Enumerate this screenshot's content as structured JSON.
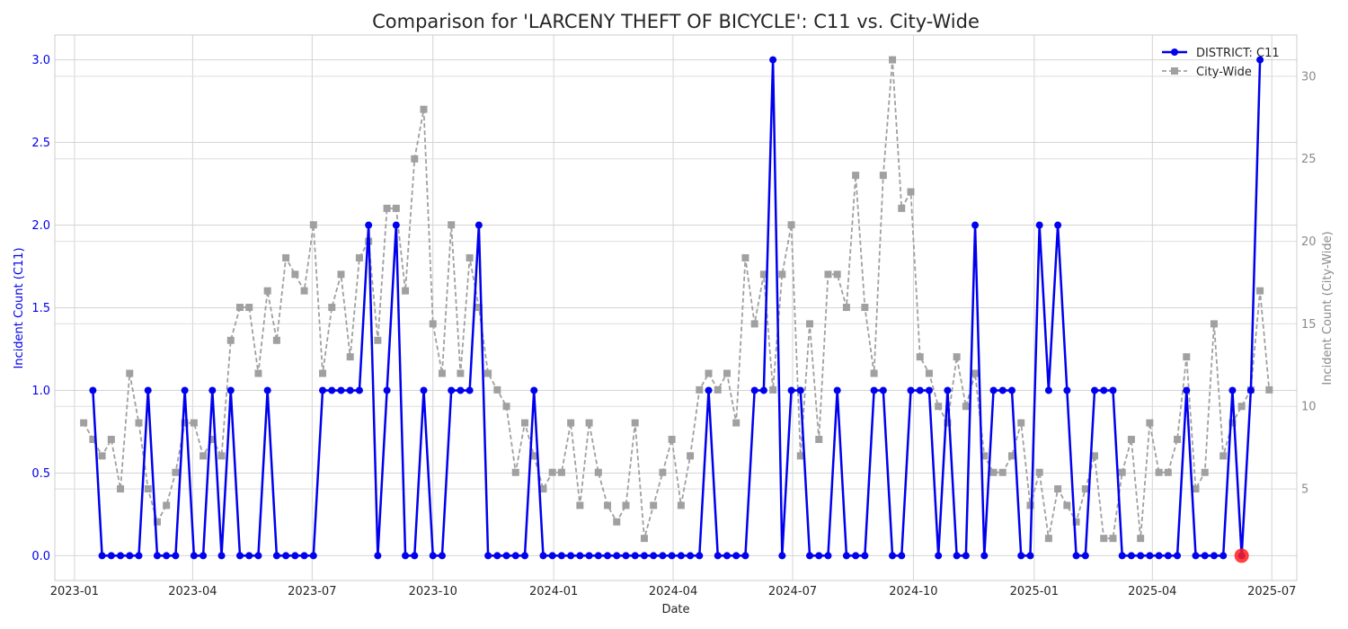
{
  "chart_data": {
    "type": "line",
    "title": "Comparison for 'LARCENY THEFT OF BICYCLE': C11 vs. City-Wide",
    "xlabel": "Date",
    "ylabel_left": "Incident Count (C11)",
    "ylabel_right": "Incident Count (City-Wide)",
    "x_start": "2023-01-08",
    "x_interval_days": 7,
    "x_ticks": [
      {
        "date": "2023-01-01",
        "label": "2023-01"
      },
      {
        "date": "2023-04-01",
        "label": "2023-04"
      },
      {
        "date": "2023-07-01",
        "label": "2023-07"
      },
      {
        "date": "2023-10-01",
        "label": "2023-10"
      },
      {
        "date": "2024-01-01",
        "label": "2024-01"
      },
      {
        "date": "2024-04-01",
        "label": "2024-04"
      },
      {
        "date": "2024-07-01",
        "label": "2024-07"
      },
      {
        "date": "2024-10-01",
        "label": "2024-10"
      },
      {
        "date": "2025-01-01",
        "label": "2025-01"
      },
      {
        "date": "2025-04-01",
        "label": "2025-04"
      },
      {
        "date": "2025-07-01",
        "label": "2025-07"
      }
    ],
    "xlim": [
      "2022-12-17",
      "2025-07-20"
    ],
    "ylim_left": [
      -0.15,
      3.15
    ],
    "ylim_right": [
      -0.55,
      32.5
    ],
    "y_ticks_left": [
      "0.0",
      "0.5",
      "1.0",
      "1.5",
      "2.0",
      "2.5",
      "3.0"
    ],
    "y_ticks_right": [
      "5",
      "10",
      "15",
      "20",
      "25",
      "30"
    ],
    "grid": true,
    "legend_position": "top-right",
    "series": [
      {
        "name": "DISTRICT: C11",
        "axis": "left",
        "color": "#0000ee",
        "style": "solid",
        "marker": "circle",
        "start_index": 1,
        "values": [
          1,
          0,
          0,
          0,
          0,
          0,
          1,
          0,
          0,
          0,
          1,
          0,
          0,
          1,
          0,
          1,
          0,
          0,
          0,
          1,
          0,
          0,
          0,
          0,
          0,
          1,
          1,
          1,
          1,
          1,
          2,
          0,
          1,
          2,
          0,
          0,
          1,
          0,
          0,
          1,
          1,
          1,
          2,
          0,
          0,
          0,
          0,
          0,
          1,
          0,
          0,
          0,
          0,
          0,
          0,
          0,
          0,
          0,
          0,
          0,
          0,
          0,
          0,
          0,
          0,
          0,
          0,
          1,
          0,
          0,
          0,
          0,
          1,
          1,
          3,
          0,
          1,
          1,
          0,
          0,
          0,
          1,
          0,
          0,
          0,
          1,
          1,
          0,
          0,
          1,
          1,
          1,
          0,
          1,
          0,
          0,
          2,
          0,
          1,
          1,
          1,
          0,
          0,
          2,
          1,
          2,
          1,
          0,
          0,
          1,
          1,
          1,
          0,
          0,
          0,
          0,
          0,
          0,
          0,
          1,
          0,
          0,
          0,
          0,
          1,
          0,
          1,
          3
        ]
      },
      {
        "name": "City-Wide",
        "axis": "right",
        "color": "#a0a0a0",
        "style": "dashed",
        "marker": "square",
        "start_index": 0,
        "values": [
          9,
          8,
          7,
          8,
          5,
          12,
          9,
          5,
          3,
          4,
          6,
          9,
          9,
          7,
          8,
          7,
          14,
          16,
          16,
          12,
          17,
          14,
          19,
          18,
          17,
          21,
          12,
          16,
          18,
          13,
          19,
          20,
          14,
          22,
          22,
          17,
          25,
          28,
          15,
          12,
          21,
          12,
          19,
          16,
          12,
          11,
          10,
          6,
          9,
          7,
          5,
          6,
          6,
          9,
          4,
          9,
          6,
          4,
          3,
          4,
          9,
          2,
          4,
          6,
          8,
          4,
          7,
          11,
          12,
          11,
          12,
          9,
          19,
          15,
          18,
          11,
          18,
          21,
          7,
          15,
          8,
          18,
          18,
          16,
          24,
          16,
          12,
          24,
          31,
          22,
          23,
          13,
          12,
          10,
          9,
          13,
          10,
          12,
          7,
          6,
          6,
          7,
          9,
          4,
          6,
          2,
          5,
          4,
          3,
          5,
          7,
          2,
          2,
          6,
          8,
          2,
          9,
          6,
          6,
          8,
          13,
          5,
          6,
          15,
          7,
          9,
          10,
          11,
          17,
          11
        ]
      }
    ],
    "annotations": [
      {
        "type": "highlight-marker",
        "series": "DISTRICT: C11",
        "point_index": 126,
        "color": "#ff2020"
      }
    ]
  }
}
